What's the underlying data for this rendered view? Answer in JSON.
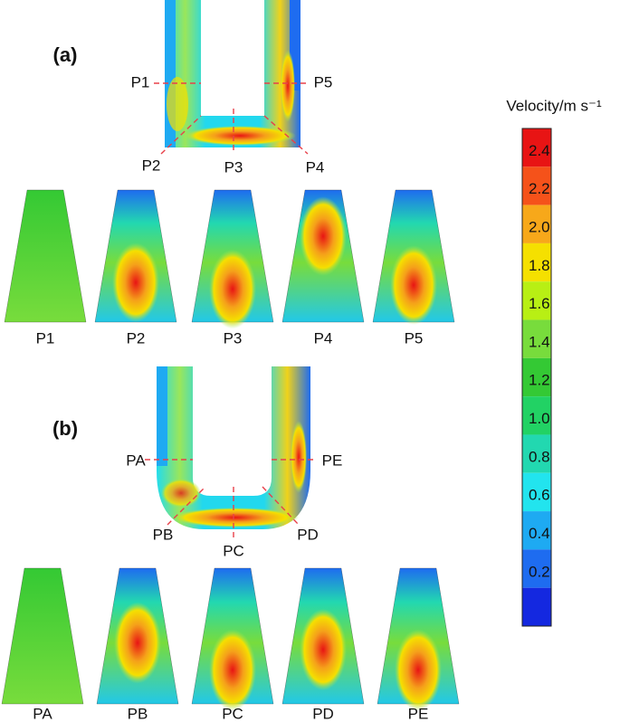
{
  "panels": [
    {
      "label": "(a)",
      "sections": [
        "P1",
        "P2",
        "P3",
        "P4",
        "P5"
      ],
      "cross_sections": [
        "P1",
        "P2",
        "P3",
        "P4",
        "P5"
      ]
    },
    {
      "label": "(b)",
      "sections": [
        "PA",
        "PB",
        "PC",
        "PD",
        "PE"
      ],
      "cross_sections": [
        "PA",
        "PB",
        "PC",
        "PD",
        "PE"
      ]
    }
  ],
  "colorbar": {
    "title": "Velocity/m s⁻¹",
    "ticks": [
      "2.4",
      "2.2",
      "2.0",
      "1.8",
      "1.6",
      "1.4",
      "1.2",
      "1.0",
      "0.8",
      "0.6",
      "0.4",
      "0.2"
    ],
    "colors": [
      "#e81414",
      "#f5521a",
      "#f7a81a",
      "#f5e000",
      "#b8ef14",
      "#78dc3c",
      "#34c934",
      "#22d264",
      "#22d8b0",
      "#22e4ee",
      "#1eaaf2",
      "#1e6cf0",
      "#1428e0"
    ]
  }
}
